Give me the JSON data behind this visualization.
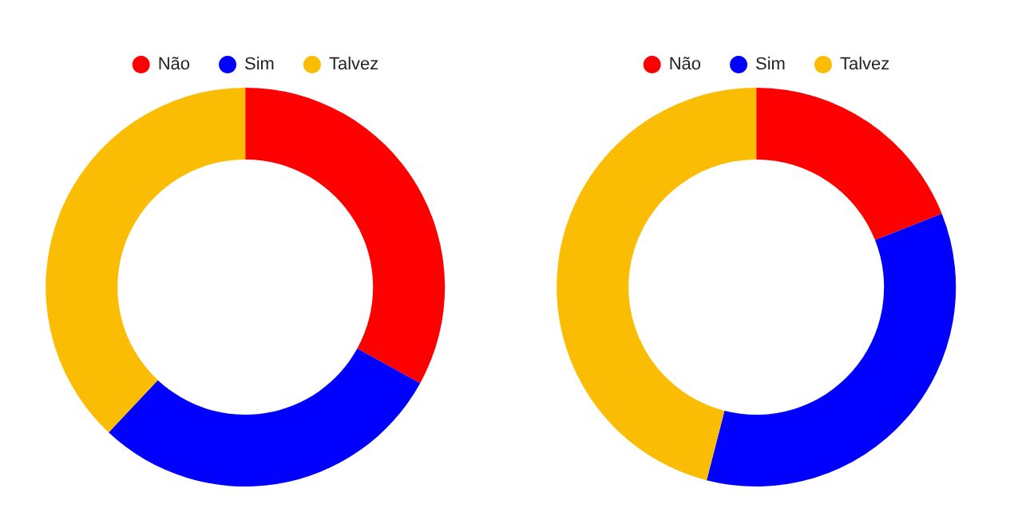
{
  "chart_data": [
    {
      "type": "donut",
      "categories": [
        "Não",
        "Sim",
        "Talvez"
      ],
      "values": [
        33,
        29,
        38
      ],
      "colors": [
        "#ff0000",
        "#0000ff",
        "#fbbc04"
      ],
      "legend": "top"
    },
    {
      "type": "donut",
      "categories": [
        "Não",
        "Sim",
        "Talvez"
      ],
      "values": [
        19,
        35,
        46
      ],
      "colors": [
        "#ff0000",
        "#0000ff",
        "#fbbc04"
      ],
      "legend": "top"
    }
  ]
}
